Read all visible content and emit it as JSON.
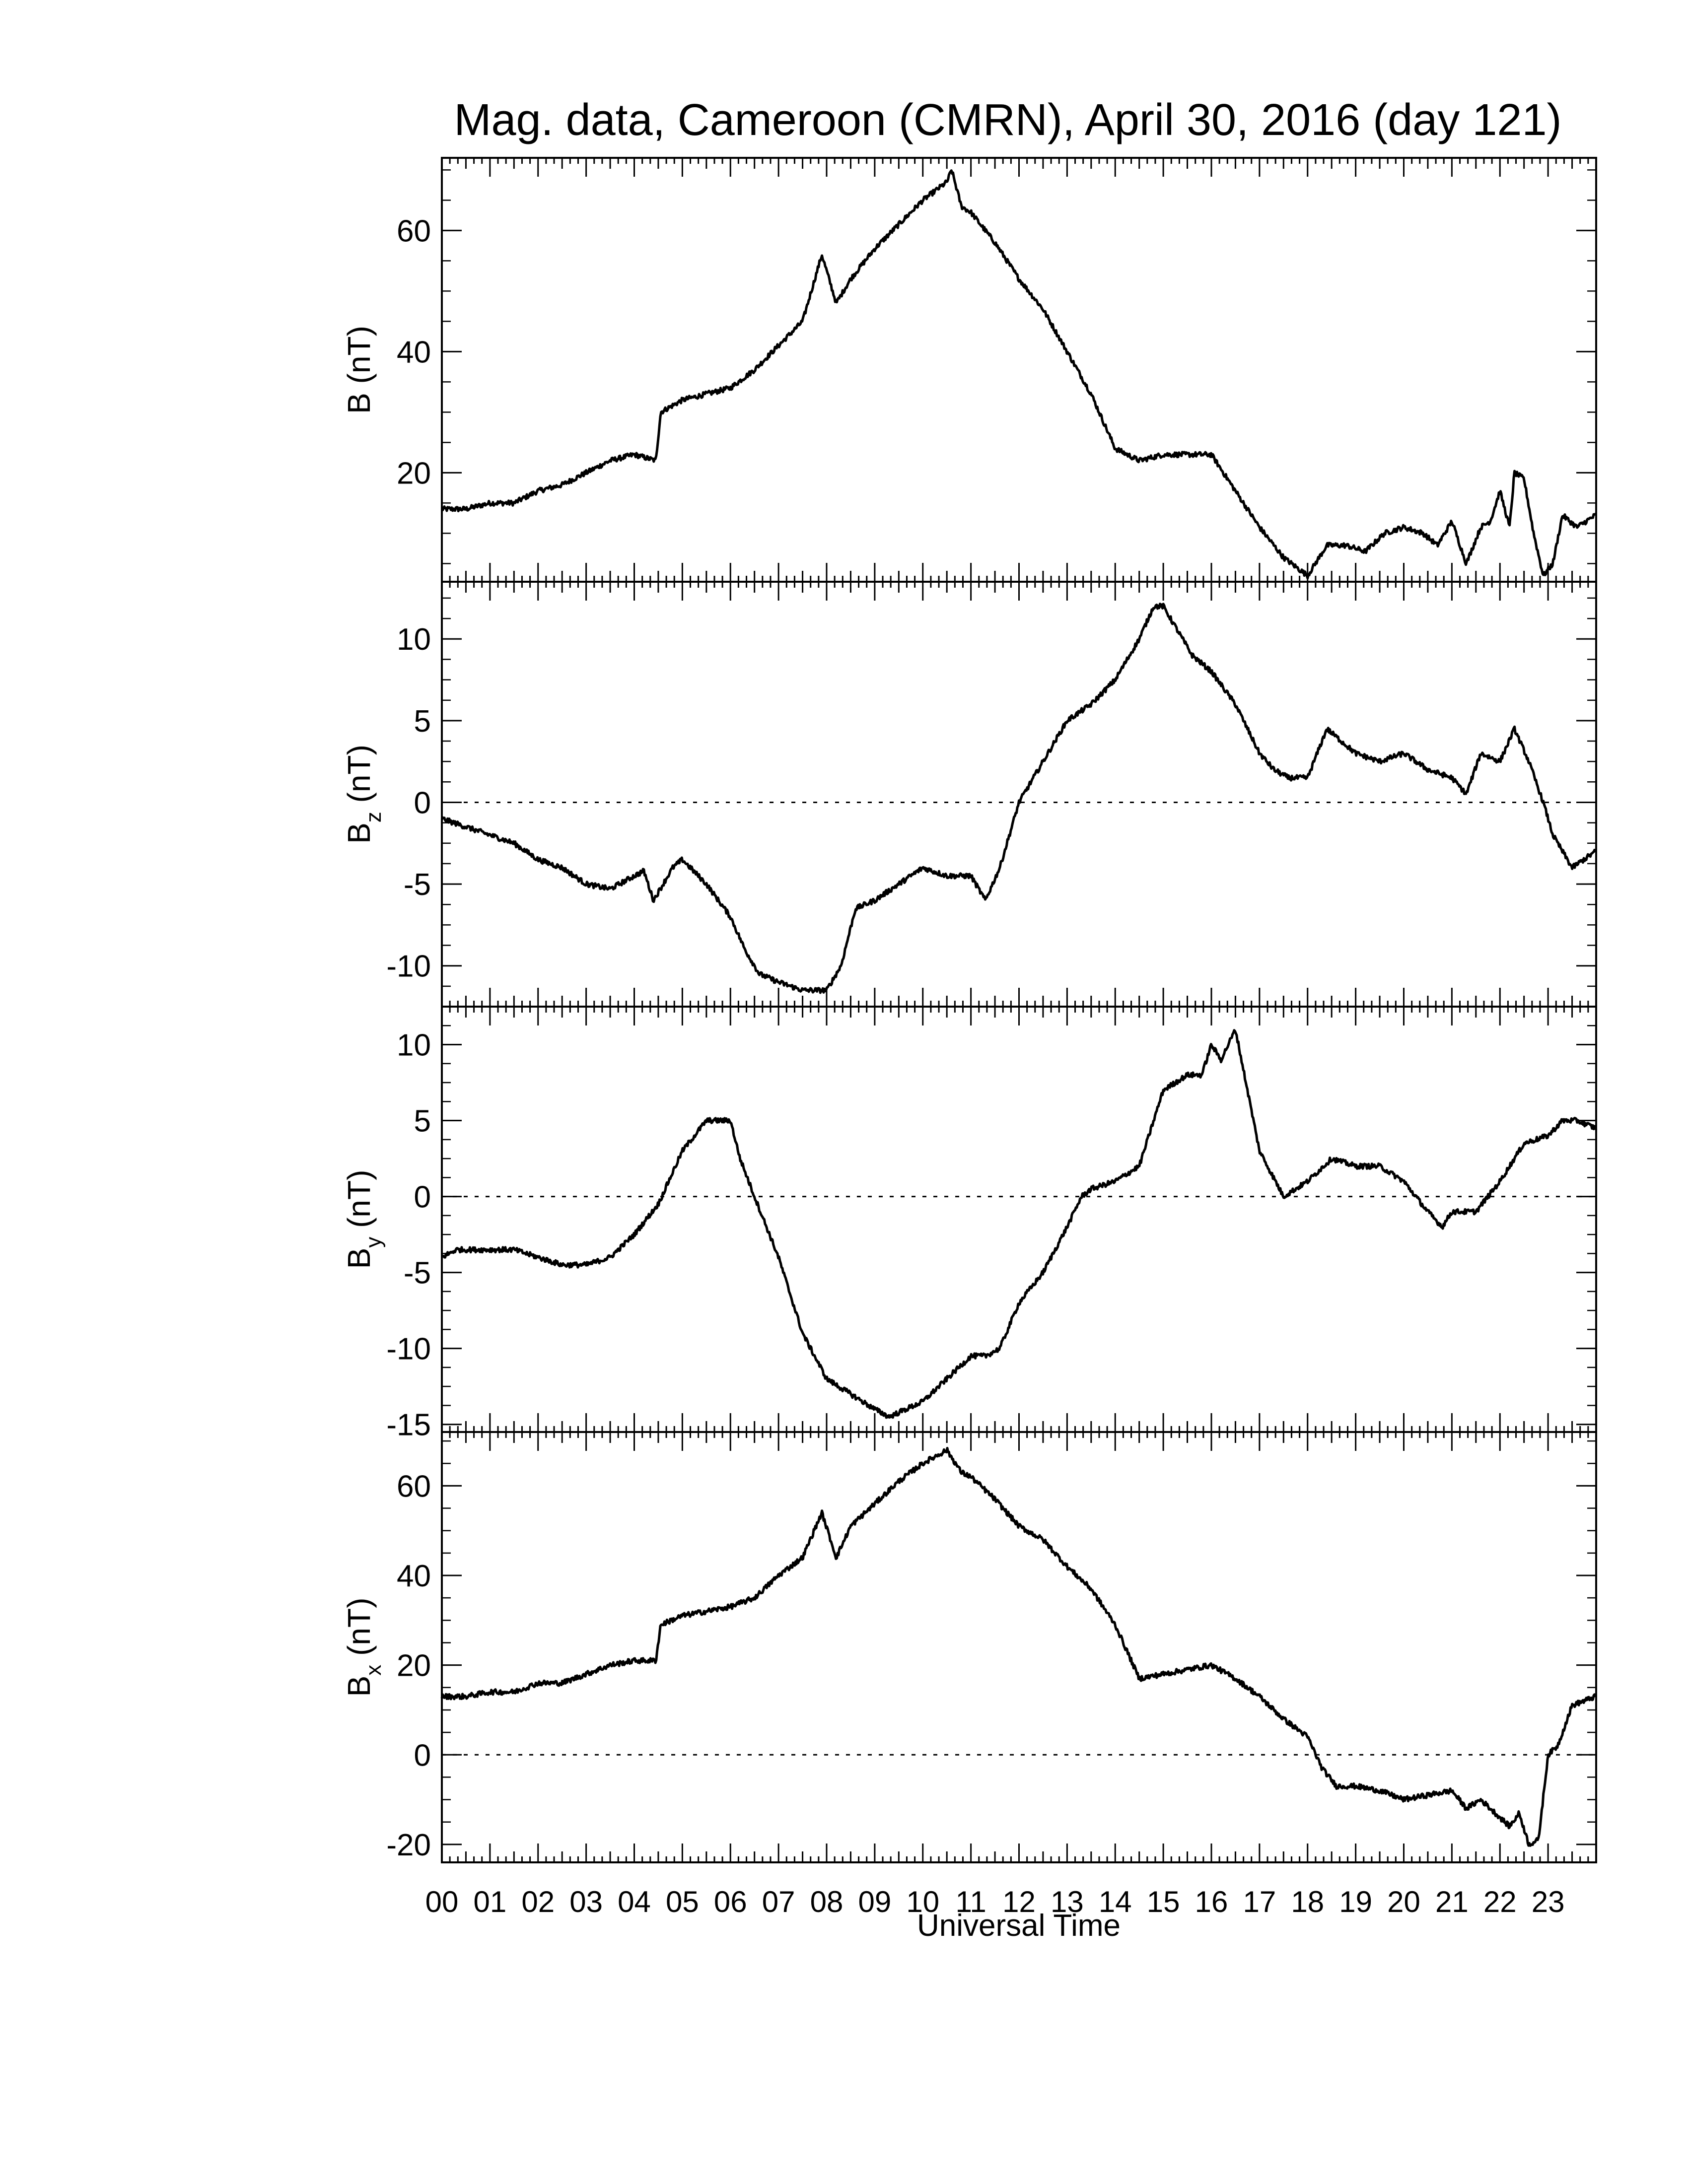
{
  "figure": {
    "title": "Mag. data, Cameroon (CMRN), April 30, 2016 (day 121)",
    "xlabel": "Universal Time",
    "line_color": "#000000",
    "zero_line_color": "#000000"
  },
  "chart_data": [
    {
      "type": "line",
      "ylabel_main": "B",
      "ylabel_sub": "",
      "ylabel_unit": " (nT)",
      "xlim": [
        0,
        24
      ],
      "ylim": [
        2,
        72
      ],
      "yticks": [
        20,
        40,
        60
      ],
      "zero_line": false,
      "x": [
        0,
        0.5,
        1,
        1.5,
        2,
        2.5,
        3,
        3.5,
        4,
        4.45,
        4.55,
        5,
        5.5,
        6,
        6.5,
        7,
        7.5,
        7.9,
        8.2,
        8.5,
        9,
        9.5,
        10,
        10.5,
        10.6,
        10.8,
        11,
        11.5,
        12,
        12.5,
        13,
        13.5,
        14,
        14.5,
        15,
        15.5,
        16,
        16.5,
        17,
        17.5,
        18,
        18.4,
        18.8,
        19.2,
        19.6,
        20,
        20.4,
        20.7,
        21,
        21.3,
        21.6,
        21.8,
        22,
        22.2,
        22.3,
        22.5,
        22.7,
        22.9,
        23.1,
        23.3,
        23.6,
        23.99
      ],
      "y": [
        14,
        14,
        15,
        15,
        17,
        18,
        20,
        22,
        23,
        22,
        30,
        32,
        33,
        34,
        37,
        41,
        45,
        56,
        48,
        52,
        57,
        61,
        65,
        68,
        70,
        64,
        63,
        58,
        52,
        47,
        40,
        33,
        24,
        22,
        23,
        23,
        23,
        17,
        11,
        6,
        3,
        8,
        8,
        7,
        10,
        11,
        10,
        8,
        12,
        5,
        11,
        12,
        17,
        11,
        20,
        19,
        10,
        3,
        5,
        13,
        11,
        13
      ]
    },
    {
      "type": "line",
      "ylabel_main": "B",
      "ylabel_sub": "z",
      "ylabel_unit": " (nT)",
      "xlim": [
        0,
        24
      ],
      "ylim": [
        -12.5,
        13.5
      ],
      "yticks": [
        -10,
        -5,
        0,
        5,
        10
      ],
      "zero_line": true,
      "x": [
        0,
        0.5,
        1,
        1.5,
        2,
        2.5,
        3,
        3.5,
        4,
        4.2,
        4.4,
        4.8,
        5,
        5.5,
        6,
        6.3,
        6.6,
        7,
        7.5,
        8,
        8.3,
        8.6,
        9,
        9.5,
        10,
        10.5,
        11,
        11.3,
        11.6,
        12,
        12.5,
        13,
        13.5,
        14,
        14.5,
        14.8,
        15,
        15.3,
        15.6,
        16,
        16.5,
        17,
        17.3,
        17.6,
        18,
        18.4,
        19,
        19.5,
        20,
        20.5,
        21,
        21.3,
        21.6,
        22,
        22.3,
        22.6,
        22.9,
        23.1,
        23.5,
        23.99
      ],
      "y": [
        -1,
        -1.5,
        -2,
        -2.5,
        -3.5,
        -4,
        -5,
        -5.3,
        -4.5,
        -4.2,
        -6,
        -4,
        -3.5,
        -5,
        -7,
        -9,
        -10.5,
        -11,
        -11.5,
        -11.5,
        -10,
        -6.5,
        -6,
        -5,
        -4,
        -4.5,
        -4.5,
        -6,
        -4,
        0,
        2.5,
        5,
        6,
        7.5,
        10,
        12,
        12,
        10.5,
        9,
        8,
        6,
        3,
        2,
        1.5,
        1.5,
        4.5,
        3,
        2.5,
        3,
        2,
        1.5,
        0.5,
        3,
        2.5,
        4.5,
        2.5,
        0,
        -2,
        -4,
        -3
      ]
    },
    {
      "type": "line",
      "ylabel_main": "B",
      "ylabel_sub": "y",
      "ylabel_unit": " (nT)",
      "xlim": [
        0,
        24
      ],
      "ylim": [
        -15.5,
        12.5
      ],
      "yticks": [
        -15,
        -10,
        -5,
        0,
        5,
        10
      ],
      "zero_line": true,
      "x": [
        0,
        0.3,
        1,
        1.5,
        2,
        2.5,
        3,
        3.5,
        4,
        4.5,
        5,
        5.5,
        6,
        6.2,
        6.5,
        7,
        7.5,
        8,
        8.5,
        9,
        9.3,
        10,
        10.5,
        11,
        11.3,
        11.6,
        12,
        12.5,
        13,
        13.3,
        13.5,
        14,
        14.5,
        15,
        15.5,
        15.8,
        16,
        16.2,
        16.5,
        17,
        17.5,
        18,
        18.5,
        19,
        19.5,
        20,
        20.5,
        20.8,
        21,
        21.5,
        22,
        22.5,
        23,
        23.3,
        23.6,
        23.99
      ],
      "y": [
        -4,
        -3.5,
        -3.5,
        -3.5,
        -4,
        -4.5,
        -4.5,
        -4,
        -2.5,
        -0.5,
        3,
        5,
        5,
        2.5,
        0,
        -4,
        -9,
        -12,
        -13,
        -14,
        -14.5,
        -13.5,
        -12,
        -10.5,
        -10.5,
        -10,
        -7,
        -5,
        -2,
        0,
        0.5,
        1,
        2,
        7,
        8,
        8,
        10,
        9,
        11,
        3,
        0,
        1,
        2.5,
        2,
        2,
        1,
        -1,
        -2,
        -1,
        -1,
        1,
        3.5,
        4,
        5,
        5,
        4.5
      ]
    },
    {
      "type": "line",
      "ylabel_main": "B",
      "ylabel_sub": "x",
      "ylabel_unit": " (nT)",
      "xlim": [
        0,
        24
      ],
      "ylim": [
        -24,
        72
      ],
      "yticks": [
        -20,
        0,
        20,
        40,
        60
      ],
      "zero_line": true,
      "x": [
        0,
        0.5,
        1,
        1.5,
        2,
        2.5,
        3,
        3.5,
        4,
        4.45,
        4.55,
        5,
        5.5,
        6,
        6.5,
        7,
        7.5,
        7.9,
        8.2,
        8.5,
        9,
        9.5,
        10,
        10.5,
        10.8,
        11,
        11.5,
        12,
        12.5,
        13,
        13.5,
        14,
        14.5,
        15,
        15.5,
        16,
        16.5,
        17,
        17.5,
        18,
        18.3,
        18.6,
        19,
        19.5,
        20,
        20.5,
        21,
        21.3,
        21.6,
        22,
        22.2,
        22.4,
        22.6,
        22.8,
        23,
        23.2,
        23.5,
        23.99
      ],
      "y": [
        13,
        13,
        14,
        14,
        16,
        16,
        18,
        20,
        21,
        21,
        29,
        31,
        32,
        33,
        35,
        40,
        44,
        54,
        44,
        51,
        56,
        61,
        65,
        68,
        63,
        62,
        57,
        51,
        48,
        42,
        37,
        29,
        17,
        18,
        19,
        20,
        17,
        13,
        8,
        4,
        -3,
        -7,
        -7,
        -8,
        -10,
        -9,
        -8,
        -12,
        -10,
        -14,
        -16,
        -13,
        -20,
        -19,
        0,
        2,
        11,
        13
      ]
    }
  ],
  "xaxis": {
    "tick_labels": [
      "00",
      "01",
      "02",
      "03",
      "04",
      "05",
      "06",
      "07",
      "08",
      "09",
      "10",
      "11",
      "12",
      "13",
      "14",
      "15",
      "16",
      "17",
      "18",
      "19",
      "20",
      "21",
      "22",
      "23"
    ]
  }
}
